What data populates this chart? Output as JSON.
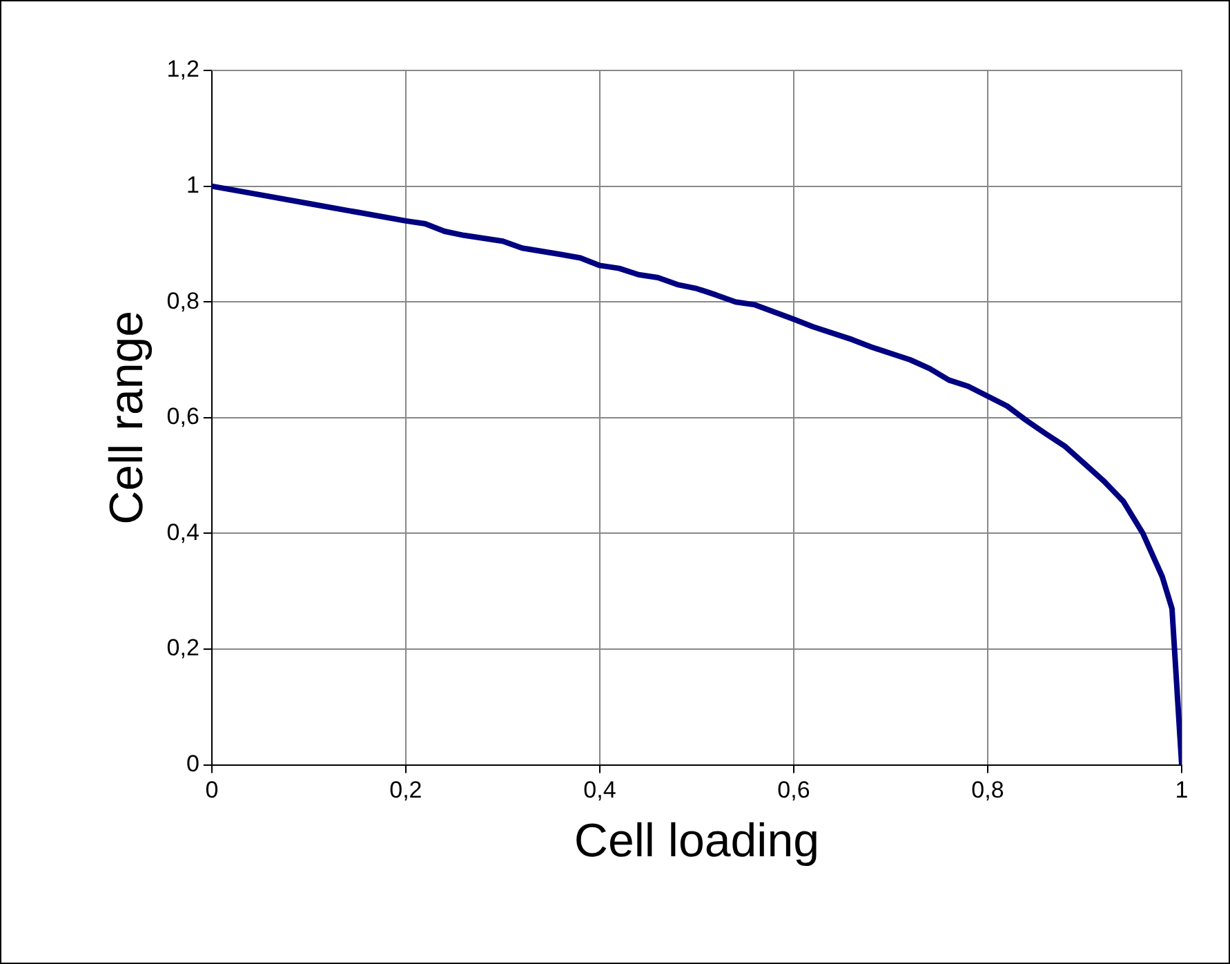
{
  "chart_data": {
    "type": "line",
    "xlabel": "Cell loading",
    "ylabel": "Cell range",
    "x": [
      0,
      0.05,
      0.1,
      0.15,
      0.2,
      0.22,
      0.24,
      0.26,
      0.3,
      0.32,
      0.36,
      0.38,
      0.4,
      0.42,
      0.44,
      0.46,
      0.48,
      0.5,
      0.52,
      0.54,
      0.56,
      0.6,
      0.62,
      0.66,
      0.68,
      0.72,
      0.74,
      0.76,
      0.78,
      0.8,
      0.82,
      0.84,
      0.86,
      0.88,
      0.9,
      0.92,
      0.94,
      0.96,
      0.98,
      0.99,
      1
    ],
    "series": [
      {
        "color": "#000080",
        "values": [
          1.0,
          0.985,
          0.97,
          0.955,
          0.94,
          0.935,
          0.922,
          0.915,
          0.905,
          0.893,
          0.882,
          0.876,
          0.863,
          0.858,
          0.847,
          0.842,
          0.83,
          0.823,
          0.812,
          0.8,
          0.795,
          0.77,
          0.757,
          0.735,
          0.722,
          0.7,
          0.685,
          0.665,
          0.654,
          0.637,
          0.62,
          0.595,
          0.572,
          0.55,
          0.52,
          0.49,
          0.455,
          0.4,
          0.325,
          0.27,
          0.0
        ]
      }
    ],
    "xlim": [
      0,
      1
    ],
    "xticks": [
      0,
      {
        "value": 0.2,
        "label": "0,2"
      },
      {
        "value": 0.4,
        "label": "0,4"
      },
      {
        "value": 0.6,
        "label": "0,6"
      },
      {
        "value": 0.8,
        "label": "0,8"
      },
      1
    ],
    "ylim": [
      0,
      1.2
    ],
    "yticks": [
      0,
      {
        "value": 0.2,
        "label": "0,2"
      },
      {
        "value": 0.4,
        "label": "0,4"
      },
      {
        "value": 0.6,
        "label": "0,6"
      },
      {
        "value": 0.8,
        "label": "0,8"
      },
      1,
      {
        "value": 1.2,
        "label": "1,2"
      }
    ],
    "grid": true,
    "legend": false,
    "marker": "none",
    "line_style": "solid"
  }
}
